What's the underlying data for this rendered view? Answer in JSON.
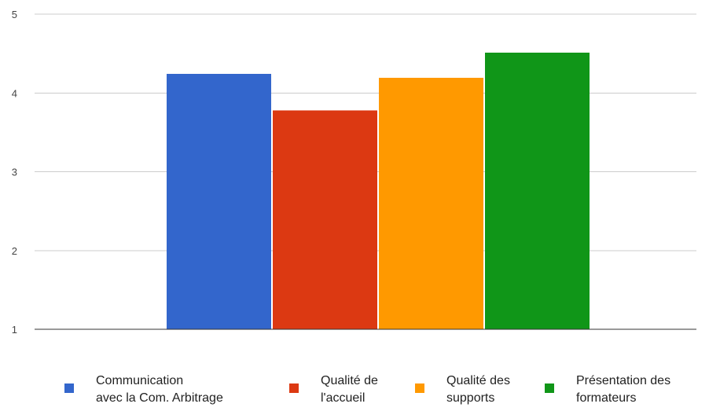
{
  "chart_data": {
    "type": "bar",
    "categories": [
      ""
    ],
    "series": [
      {
        "name": "Communication avec la Com. Arbitrage",
        "label_lines": [
          "Communication",
          "avec la Com. Arbitrage"
        ],
        "color": "#3366cc",
        "values": [
          4.24
        ]
      },
      {
        "name": "Qualité de l'accueil",
        "label_lines": [
          "Qualité de",
          "l'accueil"
        ],
        "color": "#dc3912",
        "values": [
          3.78
        ]
      },
      {
        "name": "Qualité des supports",
        "label_lines": [
          "Qualité des",
          "supports"
        ],
        "color": "#ff9900",
        "values": [
          4.19
        ]
      },
      {
        "name": "Présentation des formateurs",
        "label_lines": [
          "Présentation des",
          "formateurs"
        ],
        "color": "#109618",
        "values": [
          4.51
        ]
      }
    ],
    "ylim": [
      1,
      5
    ],
    "yticks": [
      "1",
      "2",
      "3",
      "4",
      "5"
    ],
    "grid": true,
    "legend_position": "bottom",
    "title": "",
    "xlabel": "",
    "ylabel": ""
  }
}
